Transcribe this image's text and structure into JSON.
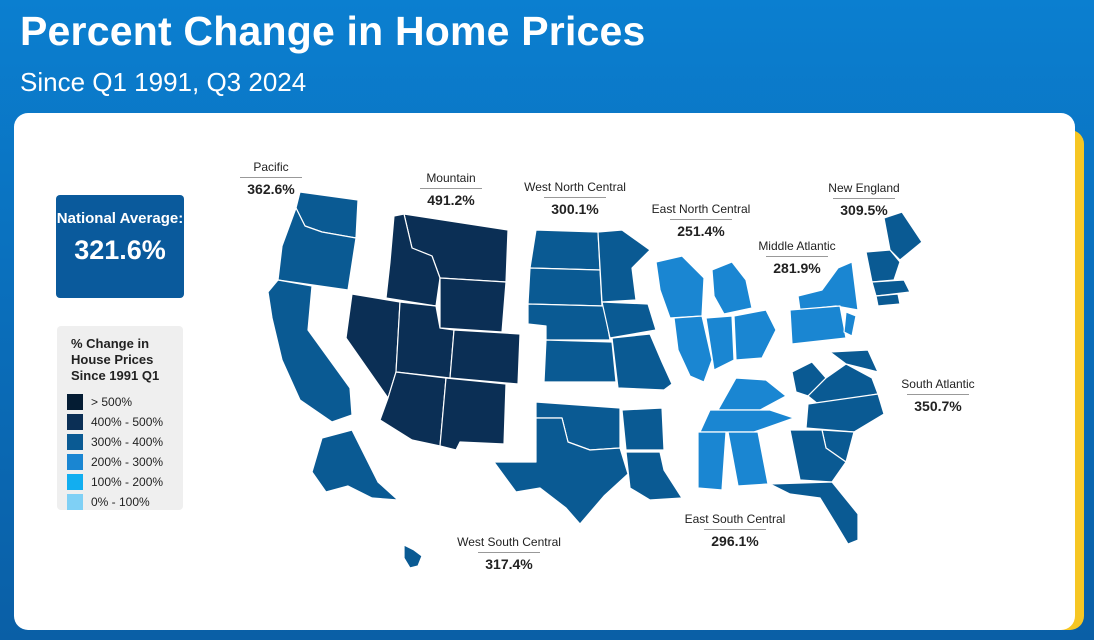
{
  "title": "Percent Change in Home Prices",
  "subtitle": "Since Q1 1991, Q3 2024",
  "national": {
    "label": "National Average:",
    "value": "321.6%"
  },
  "legend": {
    "title": "% Change in House Prices Since 1991 Q1",
    "items": [
      {
        "label": "> 500%",
        "color": "#041c33"
      },
      {
        "label": "400% - 500%",
        "color": "#0b2f55"
      },
      {
        "label": "300% - 400%",
        "color": "#0a5a93"
      },
      {
        "label": "200% - 300%",
        "color": "#1a86d2"
      },
      {
        "label": "100% - 200%",
        "color": "#12aef0"
      },
      {
        "label": "0% - 100%",
        "color": "#7fd0f5"
      }
    ]
  },
  "regions": [
    {
      "name": "Pacific",
      "value": "362.6%",
      "color": "#0a5a93"
    },
    {
      "name": "Mountain",
      "value": "491.2%",
      "color": "#0b2f55"
    },
    {
      "name": "West North Central",
      "value": "300.1%",
      "color": "#0a5a93"
    },
    {
      "name": "East North Central",
      "value": "251.4%",
      "color": "#1a86d2"
    },
    {
      "name": "Middle Atlantic",
      "value": "281.9%",
      "color": "#1a86d2"
    },
    {
      "name": "New England",
      "value": "309.5%",
      "color": "#0a5a93"
    },
    {
      "name": "South Atlantic",
      "value": "350.7%",
      "color": "#0a5a93"
    },
    {
      "name": "East South Central",
      "value": "296.1%",
      "color": "#1a86d2"
    },
    {
      "name": "West South Central",
      "value": "317.4%",
      "color": "#0a5a93"
    }
  ]
}
